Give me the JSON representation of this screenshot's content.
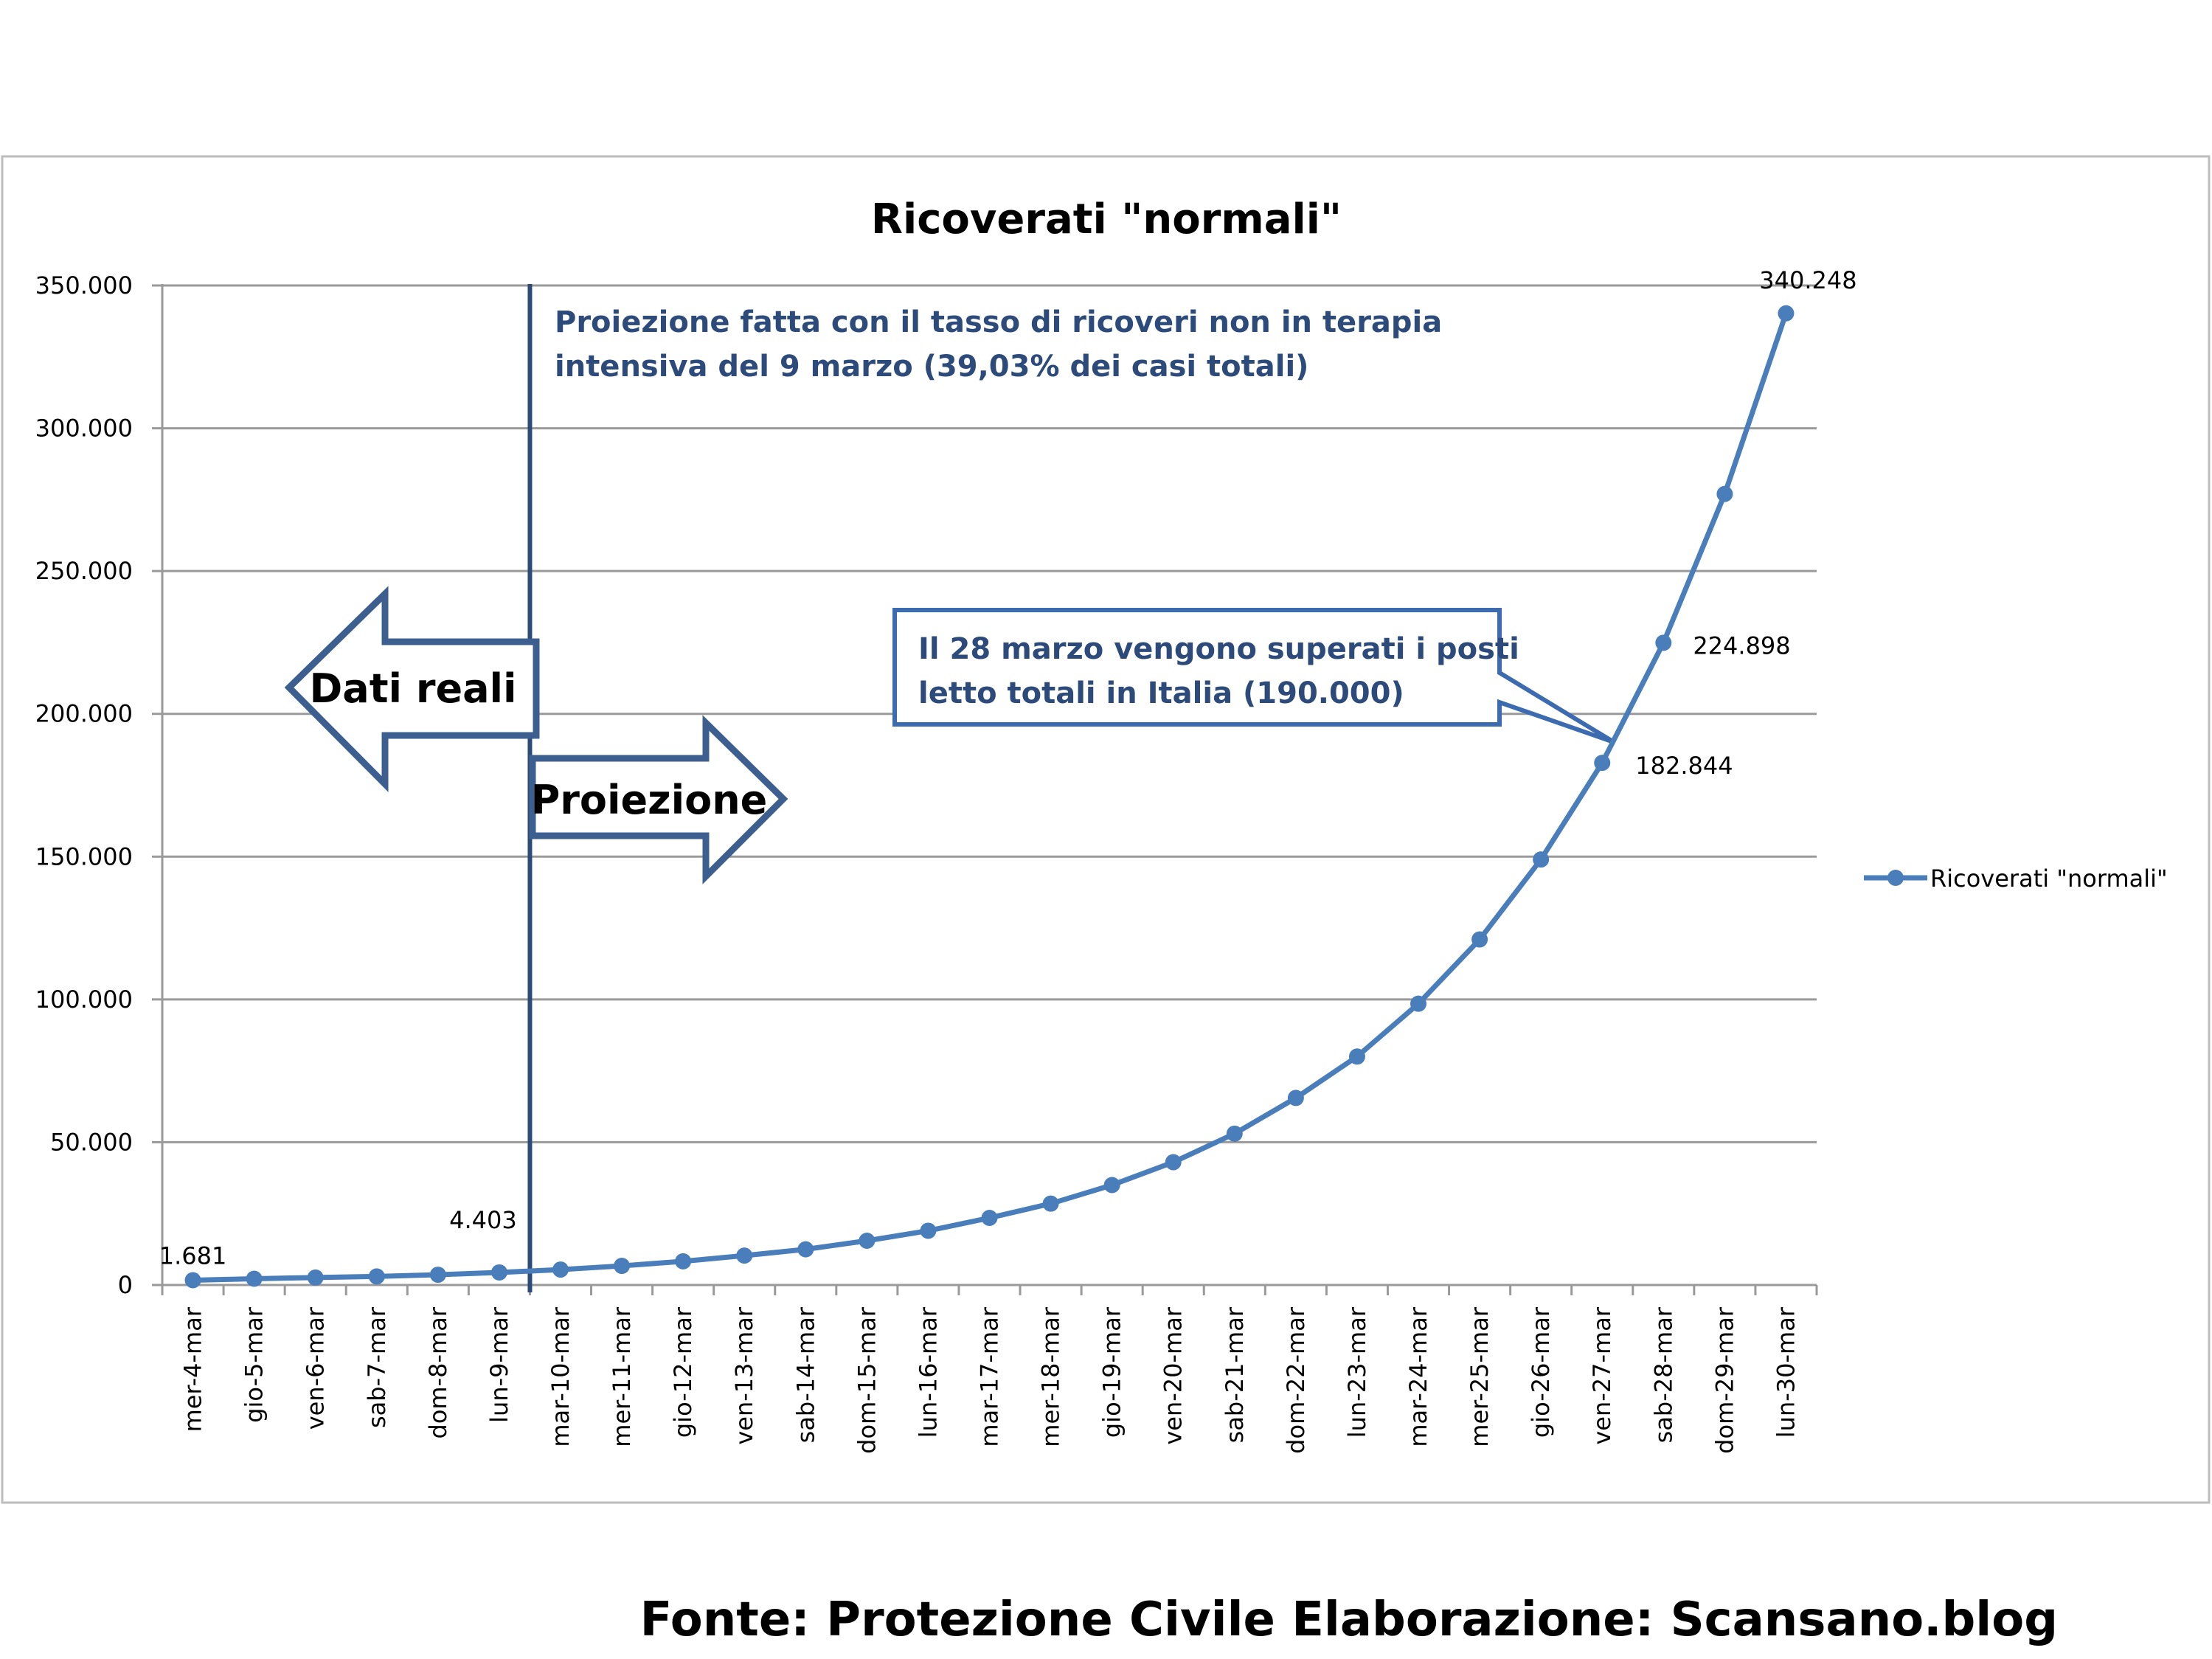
{
  "chart_data": {
    "type": "line",
    "title": "Ricoverati \"normali\"",
    "categories": [
      "mer-4-mar",
      "gio-5-mar",
      "ven-6-mar",
      "sab-7-mar",
      "dom-8-mar",
      "lun-9-mar",
      "mar-10-mar",
      "mer-11-mar",
      "gio-12-mar",
      "ven-13-mar",
      "sab-14-mar",
      "dom-15-mar",
      "lun-16-mar",
      "mar-17-mar",
      "mer-18-mar",
      "gio-19-mar",
      "ven-20-mar",
      "sab-21-mar",
      "dom-22-mar",
      "lun-23-mar",
      "mar-24-mar",
      "mer-25-mar",
      "gio-26-mar",
      "ven-27-mar",
      "sab-28-mar",
      "dom-29-mar",
      "lun-30-mar"
    ],
    "series": [
      {
        "name": "Ricoverati \"normali\"",
        "values": [
          1681,
          2200,
          2600,
          3000,
          3600,
          4403,
          5400,
          6700,
          8300,
          10300,
          12500,
          15500,
          19000,
          23500,
          28500,
          35000,
          43000,
          53000,
          65500,
          80000,
          98500,
          121000,
          149000,
          182844,
          224898,
          277000,
          340248
        ]
      }
    ],
    "ylim": [
      0,
      350000
    ],
    "yticks": [
      "0",
      "50.000",
      "100.000",
      "150.000",
      "200.000",
      "250.000",
      "300.000",
      "350.000"
    ],
    "ytick_values": [
      0,
      50000,
      100000,
      150000,
      200000,
      250000,
      300000,
      350000
    ],
    "grid": true,
    "legend_position": "right",
    "color": "#4a7ebb",
    "data_labels": [
      {
        "index": 0,
        "text": "1.681"
      },
      {
        "index": 5,
        "text": "4.403"
      },
      {
        "index": 23,
        "text": "182.844"
      },
      {
        "index": 24,
        "text": "224.898"
      },
      {
        "index": 26,
        "text": "340.248"
      }
    ]
  },
  "annotations": {
    "projection_note": [
      "Proiezione fatta con il tasso di ricoveri non in terapia",
      "intensiva del 9 marzo (39,03% dei casi totali)"
    ],
    "callout": [
      "Il 28 marzo vengono superati i posti",
      "letto totali in Italia (190.000)"
    ],
    "callout_value": 190000,
    "arrow_left": "Dati reali",
    "arrow_right": "Proiezione",
    "divider_index": 5.5
  },
  "source": "Fonte: Protezione Civile   Elaborazione: Scansano.blog"
}
